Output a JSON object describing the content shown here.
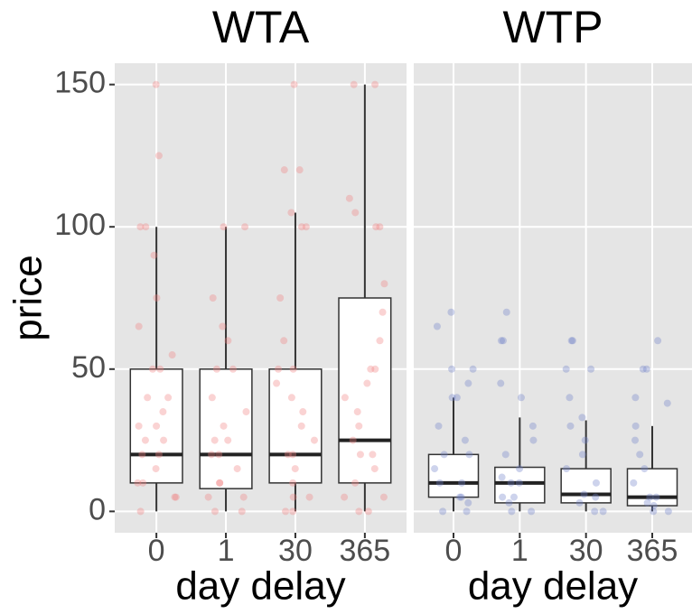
{
  "chart_data": [
    {
      "type": "box",
      "title": "WTA",
      "xlabel": "day delay",
      "ylabel": "price",
      "categories": [
        "0",
        "1",
        "30",
        "365"
      ],
      "color": "#f08080",
      "ylim": [
        -7.5,
        157.5
      ],
      "yticks": [
        0,
        50,
        100,
        150
      ],
      "grid": true,
      "boxes": [
        {
          "low": 0,
          "q1": 10,
          "median": 20,
          "q3": 50,
          "high": 100
        },
        {
          "low": 0,
          "q1": 8,
          "median": 20,
          "q3": 50,
          "high": 100
        },
        {
          "low": 0,
          "q1": 10,
          "median": 20,
          "q3": 50,
          "high": 105
        },
        {
          "low": 0,
          "q1": 10,
          "median": 25,
          "q3": 75,
          "high": 150
        }
      ],
      "points": [
        [
          150,
          125,
          100,
          100,
          90,
          75,
          65,
          55,
          50,
          50,
          40,
          40,
          35,
          30,
          30,
          25,
          25,
          20,
          20,
          15,
          10,
          10,
          5,
          5,
          0
        ],
        [
          100,
          100,
          75,
          65,
          60,
          50,
          50,
          40,
          35,
          30,
          25,
          25,
          20,
          20,
          15,
          10,
          10,
          5,
          5,
          0,
          0
        ],
        [
          150,
          120,
          120,
          105,
          100,
          100,
          75,
          60,
          50,
          50,
          45,
          40,
          35,
          30,
          25,
          20,
          20,
          15,
          10,
          5,
          5,
          0,
          0
        ],
        [
          150,
          150,
          110,
          105,
          100,
          100,
          80,
          70,
          60,
          50,
          50,
          45,
          40,
          35,
          30,
          25,
          20,
          20,
          15,
          10,
          5,
          5,
          0,
          0
        ]
      ]
    },
    {
      "type": "box",
      "title": "WTP",
      "xlabel": "day delay",
      "categories": [
        "0",
        "1",
        "30",
        "365"
      ],
      "color": "#7080c8",
      "ylim": [
        -7.5,
        157.5
      ],
      "yticks": [
        0,
        50,
        100,
        150
      ],
      "grid": true,
      "boxes": [
        {
          "low": 0,
          "q1": 5,
          "median": 10,
          "q3": 20,
          "high": 40
        },
        {
          "low": 0,
          "q1": 3,
          "median": 10,
          "q3": 15.5,
          "high": 33
        },
        {
          "low": 0,
          "q1": 3,
          "median": 6,
          "q3": 15,
          "high": 32
        },
        {
          "low": 0,
          "q1": 2,
          "median": 5,
          "q3": 15,
          "high": 30
        }
      ],
      "points": [
        [
          70,
          65,
          50,
          50,
          45,
          40,
          40,
          30,
          25,
          20,
          20,
          15,
          10,
          10,
          5,
          5,
          3,
          0,
          0
        ],
        [
          70,
          60,
          60,
          45,
          40,
          30,
          25,
          20,
          15,
          12,
          10,
          10,
          5,
          5,
          3,
          0,
          0
        ],
        [
          60,
          60,
          50,
          50,
          40,
          33,
          30,
          25,
          20,
          15,
          10,
          6,
          5,
          3,
          0,
          0
        ],
        [
          60,
          50,
          50,
          40,
          38,
          30,
          25,
          20,
          15,
          10,
          5,
          5,
          3,
          2,
          0,
          0
        ]
      ]
    }
  ]
}
